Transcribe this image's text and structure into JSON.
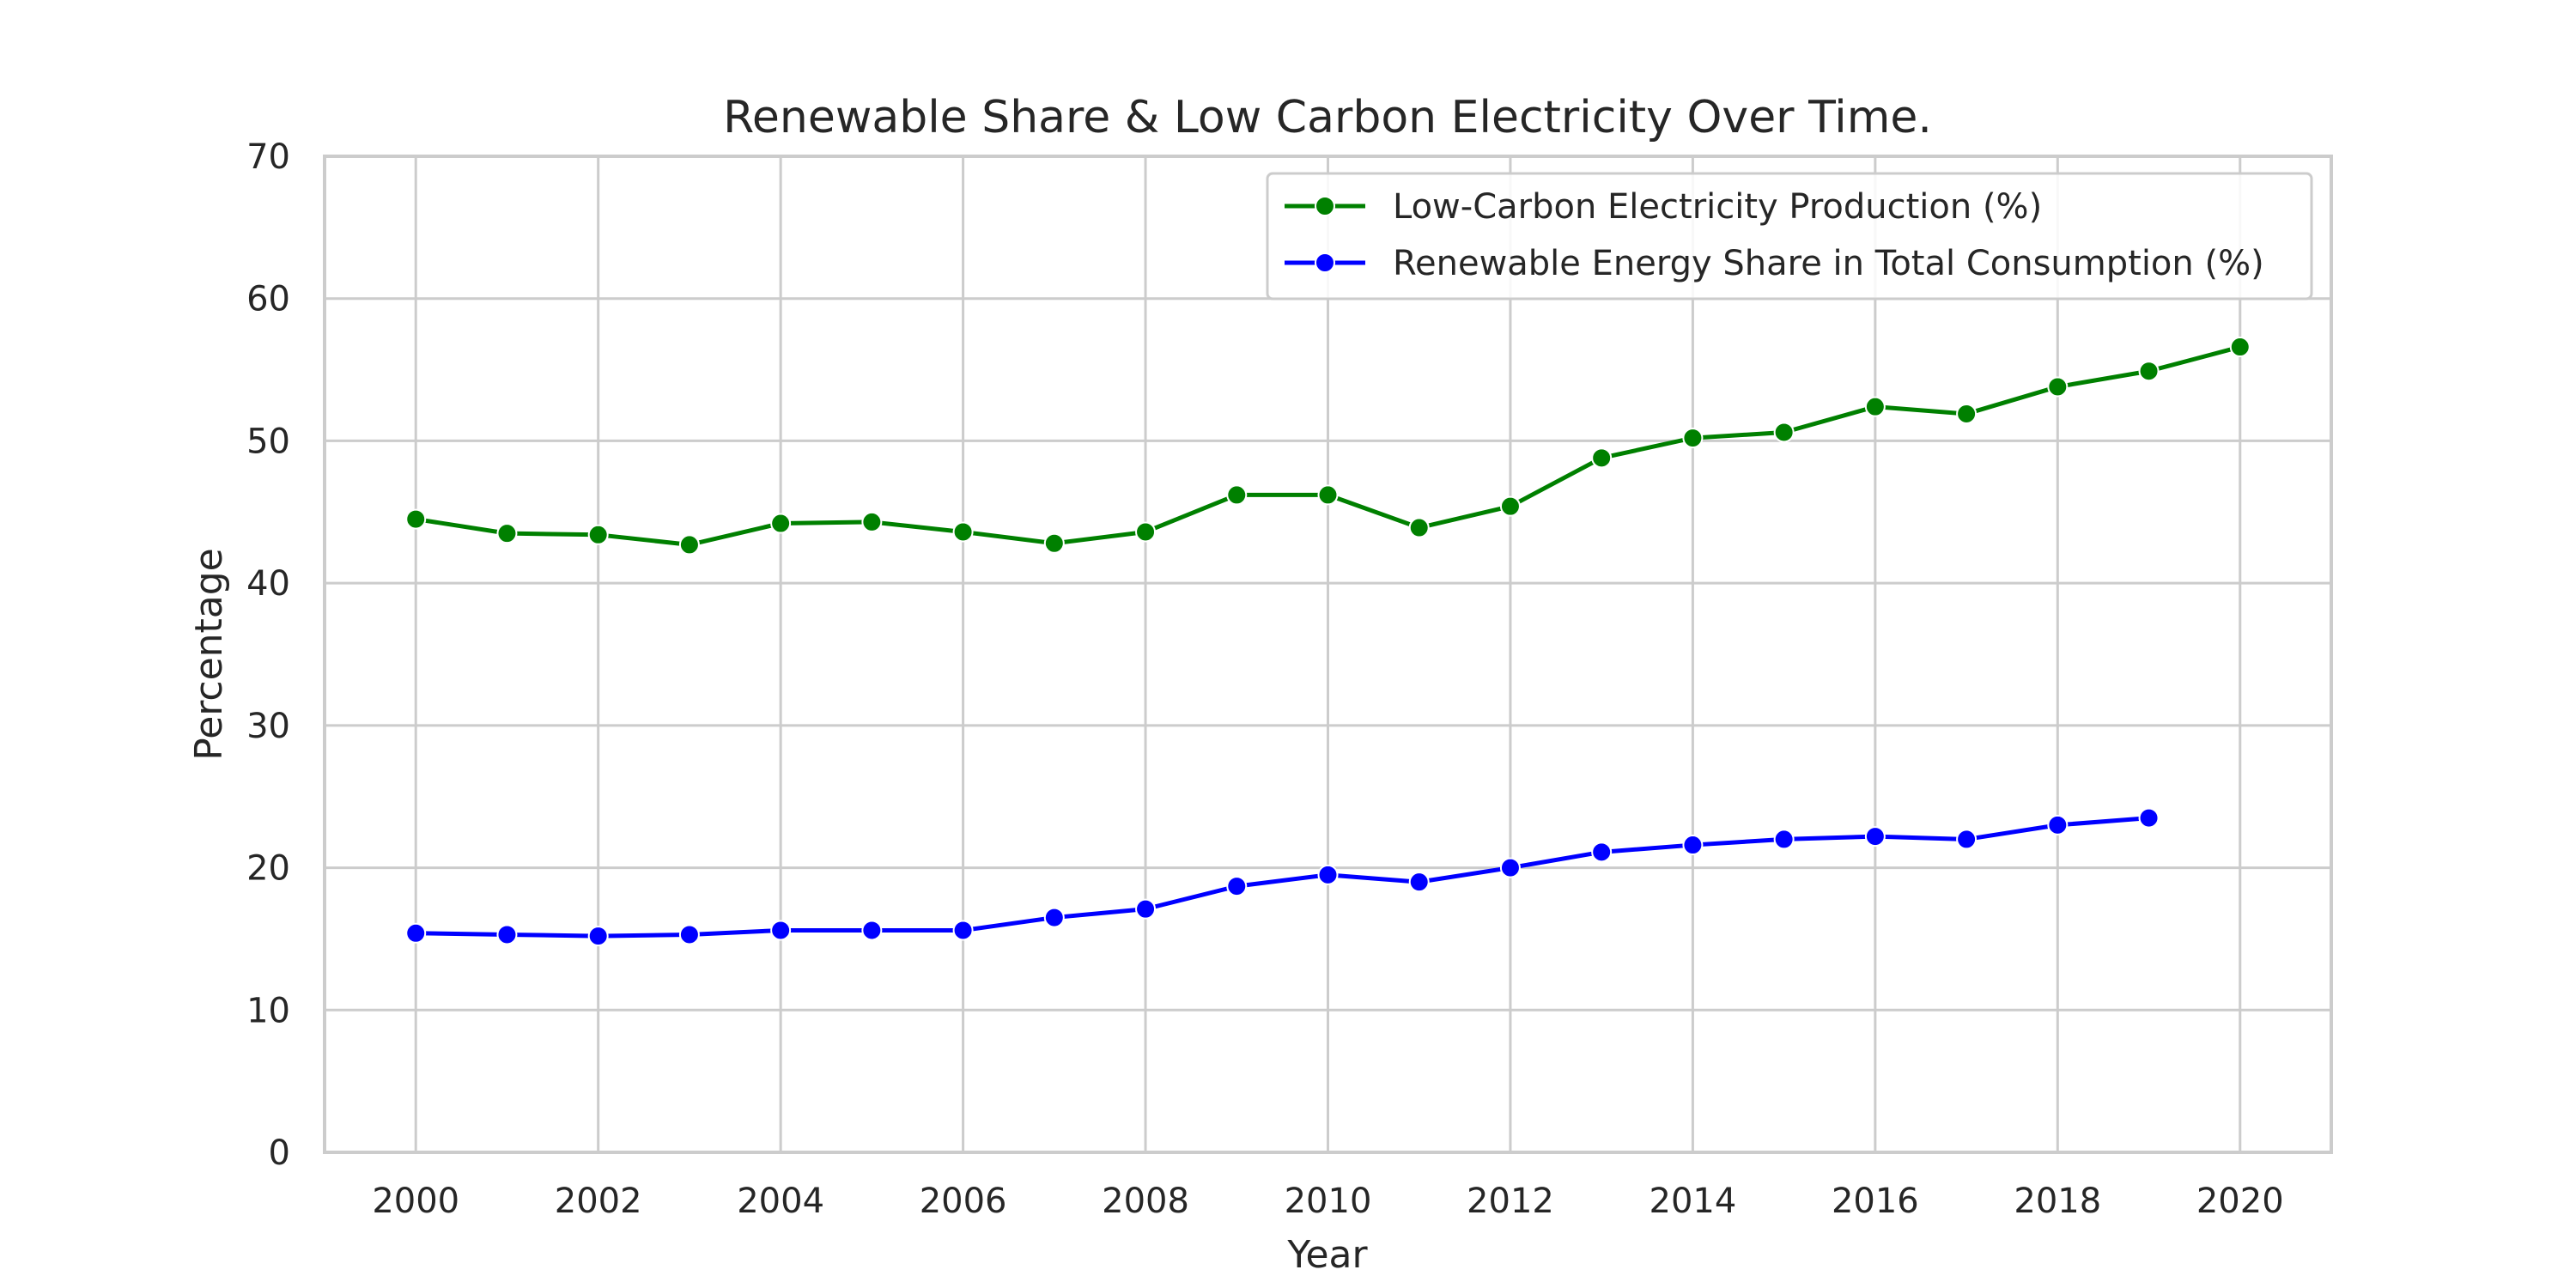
{
  "chart_data": {
    "type": "line",
    "title": "Renewable Share & Low Carbon Electricity Over Time.",
    "xlabel": "Year",
    "ylabel": "Percentage",
    "xlim": [
      1999,
      2021
    ],
    "ylim": [
      0,
      70
    ],
    "xticks": [
      "2000",
      "2002",
      "2004",
      "2006",
      "2008",
      "2010",
      "2012",
      "2014",
      "2016",
      "2018",
      "2020"
    ],
    "yticks": [
      "0",
      "10",
      "20",
      "30",
      "40",
      "50",
      "60",
      "70"
    ],
    "grid": true,
    "legend_position": "top-right",
    "series": [
      {
        "name": "Low-Carbon Electricity Production (%)",
        "color": "#008000",
        "x": [
          2000,
          2001,
          2002,
          2003,
          2004,
          2005,
          2006,
          2007,
          2008,
          2009,
          2010,
          2011,
          2012,
          2013,
          2014,
          2015,
          2016,
          2017,
          2018,
          2019,
          2020
        ],
        "values": [
          44.5,
          43.5,
          43.4,
          42.7,
          44.2,
          44.3,
          43.6,
          42.8,
          43.6,
          46.2,
          46.2,
          43.9,
          45.4,
          48.8,
          50.2,
          50.6,
          52.4,
          51.9,
          53.8,
          54.9,
          56.6
        ]
      },
      {
        "name": "Renewable Energy Share in Total Consumption (%)",
        "color": "#0000ff",
        "x": [
          2000,
          2001,
          2002,
          2003,
          2004,
          2005,
          2006,
          2007,
          2008,
          2009,
          2010,
          2011,
          2012,
          2013,
          2014,
          2015,
          2016,
          2017,
          2018,
          2019
        ],
        "values": [
          15.4,
          15.3,
          15.2,
          15.3,
          15.6,
          15.6,
          15.6,
          16.5,
          17.1,
          18.7,
          19.5,
          19.0,
          20.0,
          21.1,
          21.6,
          22.0,
          22.2,
          22.0,
          23.0,
          23.5
        ]
      }
    ]
  }
}
